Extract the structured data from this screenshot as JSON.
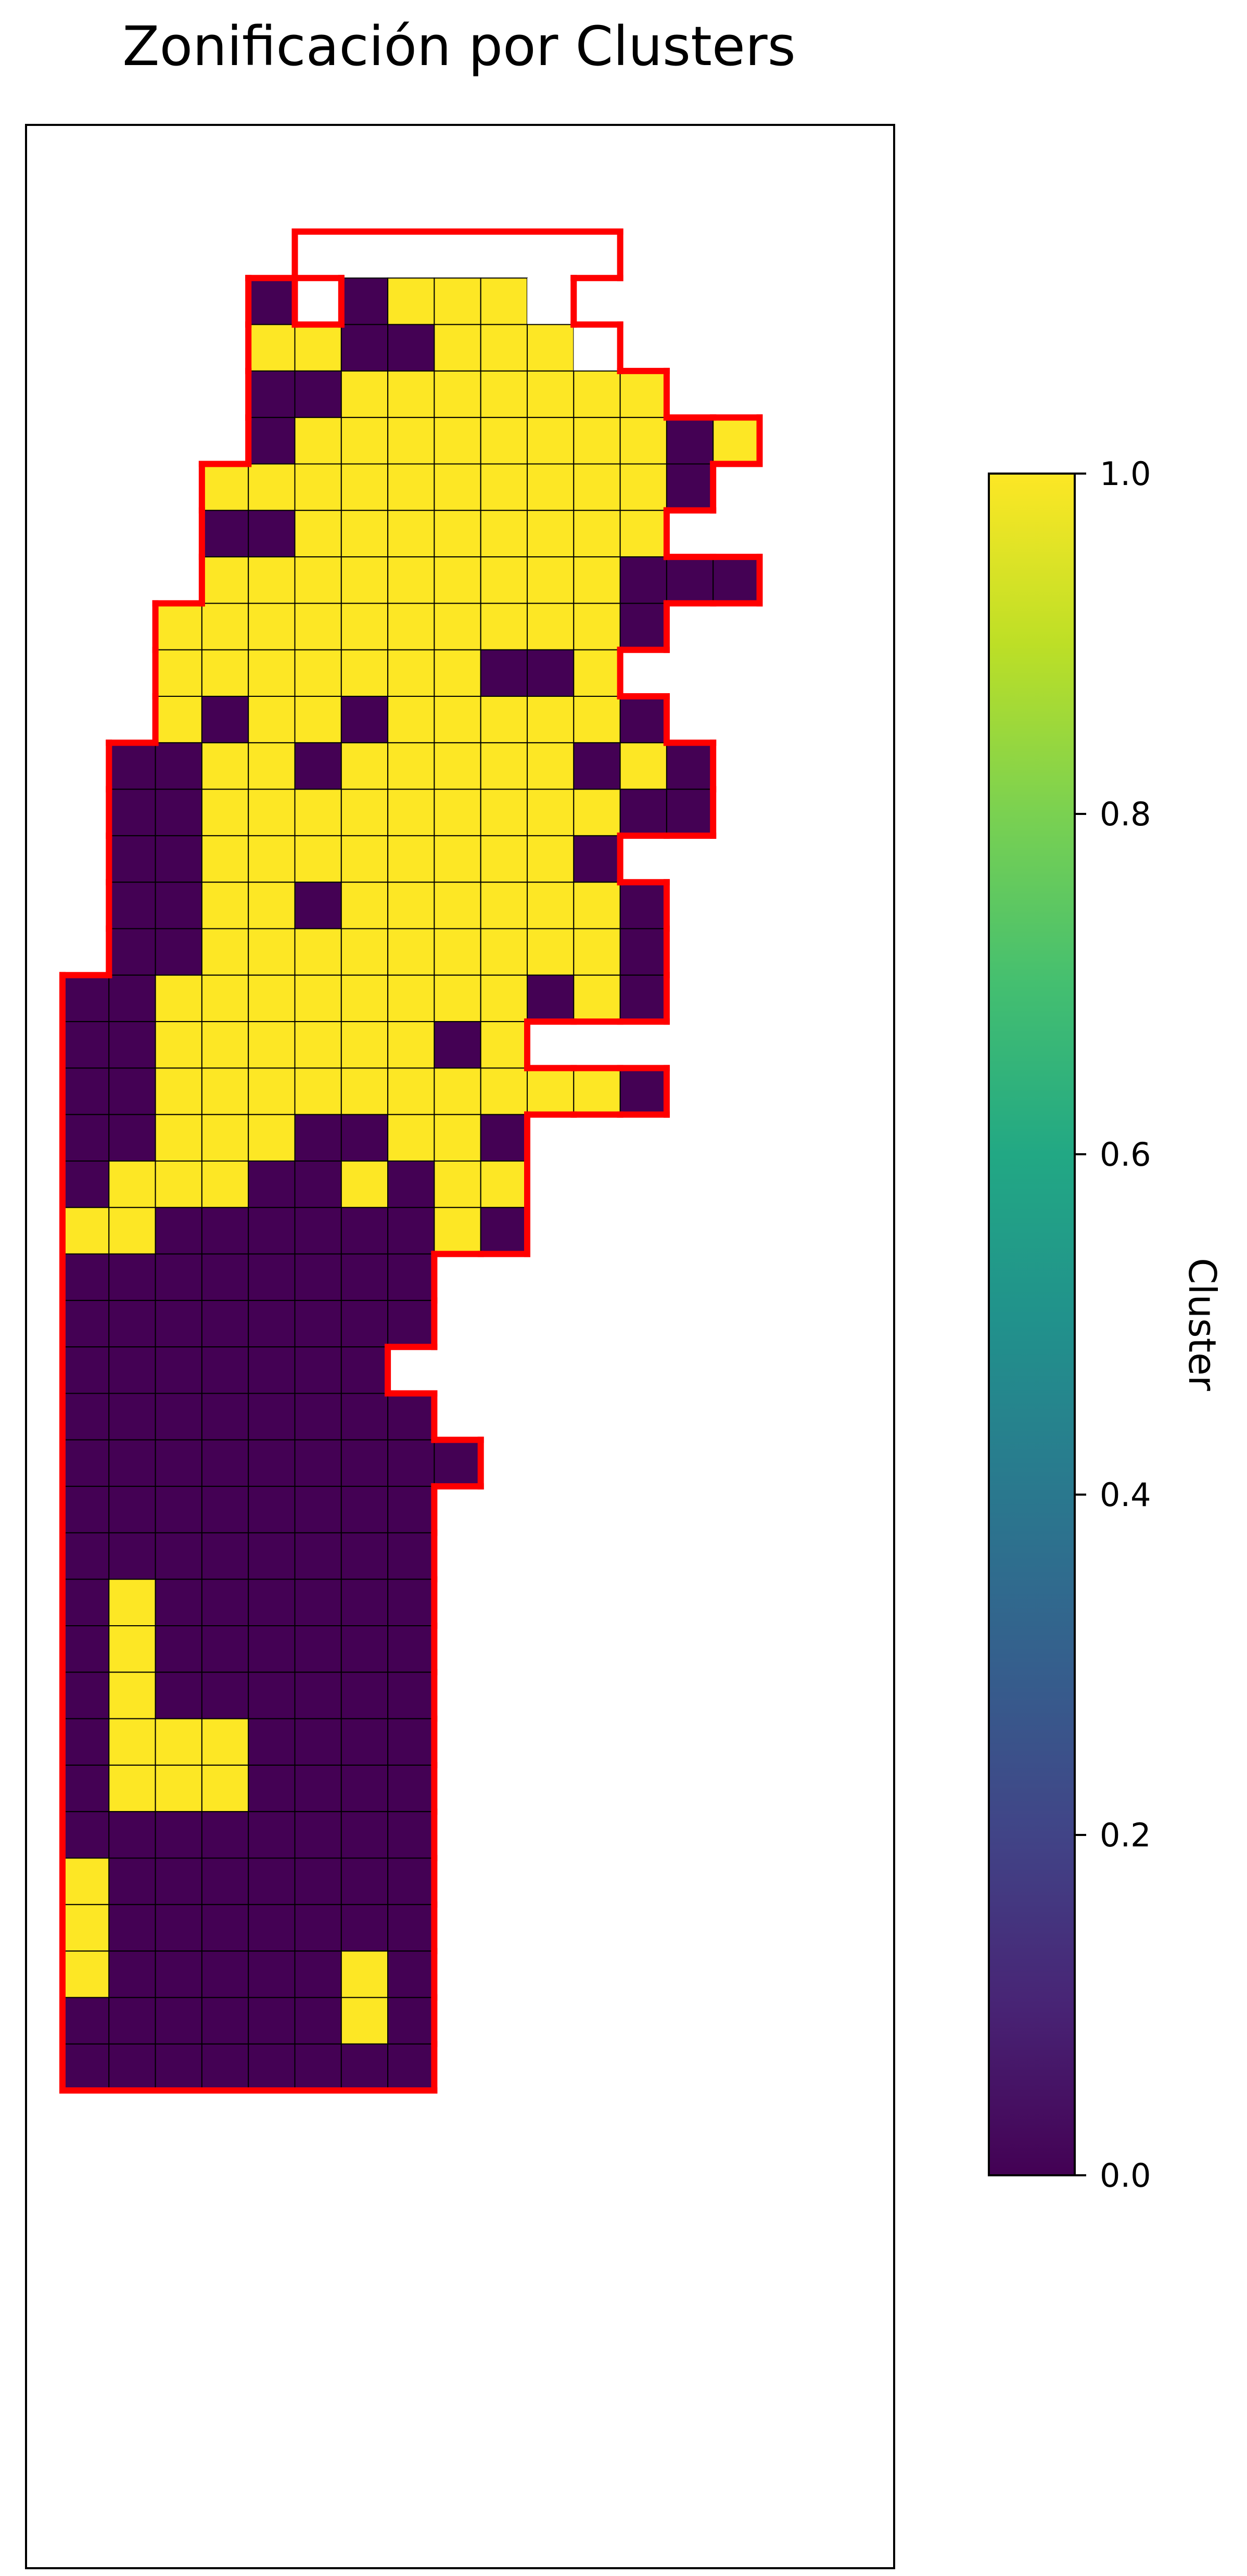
{
  "chart_data": [
    {
      "type": "heatmap",
      "title": "Zonificación por Clusters",
      "xlabel": "",
      "ylabel": "",
      "value_range": [
        0,
        1
      ],
      "colormap": "viridis",
      "grid_rows_top_to_bottom": [
        "....._______......",
        "....0.0111_.......",
        "....1100111_......",
        "....001111111.....",
        "....01111111101...",
        "...11111111110....",
        "...0011111111.....",
        "...111111111000...",
        "..11111111110.....",
        "..1111111001......",
        "..10110111110.....",
        ".0011011111010....",
        ".0011111111100....",
        ".00111111110......",
        ".001101111110.....",
        ".001111111110.....",
        "0011111111010.....",
        "0011111101........",
        "0011111111110.....",
        "0011100110........",
        "0111001011........",
        "1100000010........",
        "00000000..........",
        "00000000..........",
        "0000000...........",
        "00000000..........",
        "000000000.........",
        "00000000..........",
        "00000000..........",
        "01000000..........",
        "01000000..........",
        "01000000..........",
        "01110000..........",
        "01110000..........",
        "00000000..........",
        "10000000..........",
        "10000000..........",
        "10000010..........",
        "00000010..........",
        "00000000.........."
      ],
      "legend": "none",
      "grid": false,
      "region_outline_color": "#ff0000"
    },
    {
      "type": "colorbar",
      "label": "Cluster",
      "range": [
        0,
        1
      ],
      "ticks": [
        0,
        0.2,
        0.4,
        0.6,
        0.8,
        1
      ],
      "tick_labels": [
        "0.0",
        "0.2",
        "0.4",
        "0.6",
        "0.8",
        "1.0"
      ],
      "colormap": "viridis"
    }
  ],
  "colors": {
    "cluster_0": "#440154",
    "cluster_1": "#fde725",
    "outline": "#ff0000",
    "frame": "#000000"
  }
}
